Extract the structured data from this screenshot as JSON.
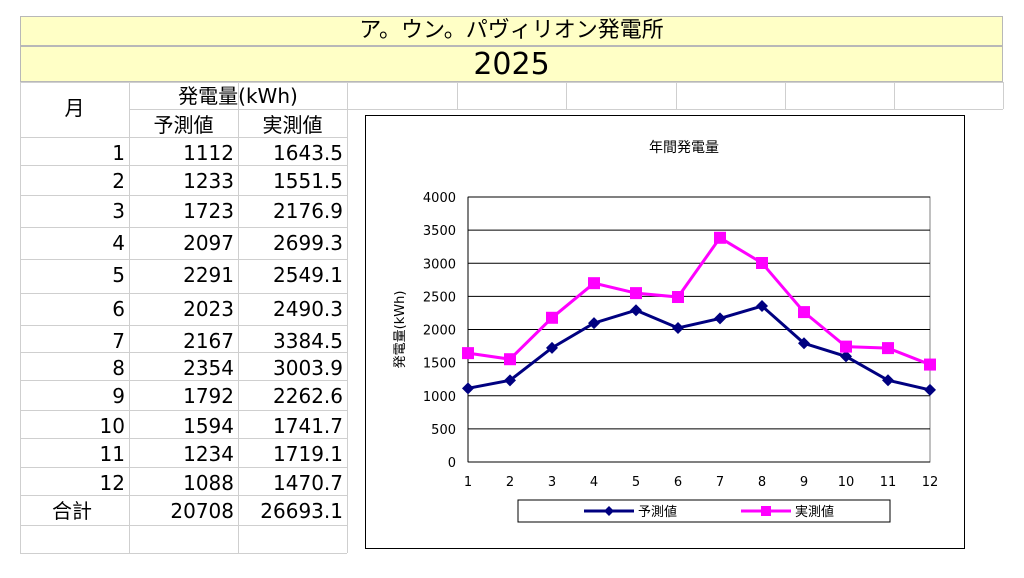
{
  "sheet": {
    "title": "ア。ウン。パヴィリオン発電所",
    "year": "2025",
    "header_month": "月",
    "header_group": "発電量(kWh)",
    "header_forecast": "予測値",
    "header_actual": "実測値",
    "rows": [
      {
        "month": "1",
        "forecast": "1112",
        "actual": "1643.5"
      },
      {
        "month": "2",
        "forecast": "1233",
        "actual": "1551.5"
      },
      {
        "month": "3",
        "forecast": "1723",
        "actual": "2176.9"
      },
      {
        "month": "4",
        "forecast": "2097",
        "actual": "2699.3"
      },
      {
        "month": "5",
        "forecast": "2291",
        "actual": "2549.1"
      },
      {
        "month": "6",
        "forecast": "2023",
        "actual": "2490.3"
      },
      {
        "month": "7",
        "forecast": "2167",
        "actual": "3384.5"
      },
      {
        "month": "8",
        "forecast": "2354",
        "actual": "3003.9"
      },
      {
        "month": "9",
        "forecast": "1792",
        "actual": "2262.6"
      },
      {
        "month": "10",
        "forecast": "1594",
        "actual": "1741.7"
      },
      {
        "month": "11",
        "forecast": "1234",
        "actual": "1719.1"
      },
      {
        "month": "12",
        "forecast": "1088",
        "actual": "1470.7"
      }
    ],
    "total_label": "合計",
    "total_forecast": "20708",
    "total_actual": "26693.1"
  },
  "colors": {
    "title_bg": "#ffffc6",
    "forecast_series": "#000080",
    "actual_series": "#ff00ff"
  },
  "chart_data": {
    "type": "line",
    "title": "年間発電量",
    "xlabel": "",
    "ylabel": "発電量(kWh)",
    "x": [
      "1",
      "2",
      "3",
      "4",
      "5",
      "6",
      "7",
      "8",
      "9",
      "10",
      "11",
      "12"
    ],
    "ylim": [
      0,
      4000
    ],
    "yticks": [
      0,
      500,
      1000,
      1500,
      2000,
      2500,
      3000,
      3500,
      4000
    ],
    "grid": true,
    "legend_position": "bottom",
    "series": [
      {
        "name": "予測値",
        "marker": "diamond",
        "color": "#000080",
        "values": [
          1112,
          1233,
          1723,
          2097,
          2291,
          2023,
          2167,
          2354,
          1792,
          1594,
          1234,
          1088
        ]
      },
      {
        "name": "実測値",
        "marker": "square",
        "color": "#ff00ff",
        "values": [
          1643.5,
          1551.5,
          2176.9,
          2699.3,
          2549.1,
          2490.3,
          3384.5,
          3003.9,
          2262.6,
          1741.7,
          1719.1,
          1470.7
        ]
      }
    ]
  }
}
